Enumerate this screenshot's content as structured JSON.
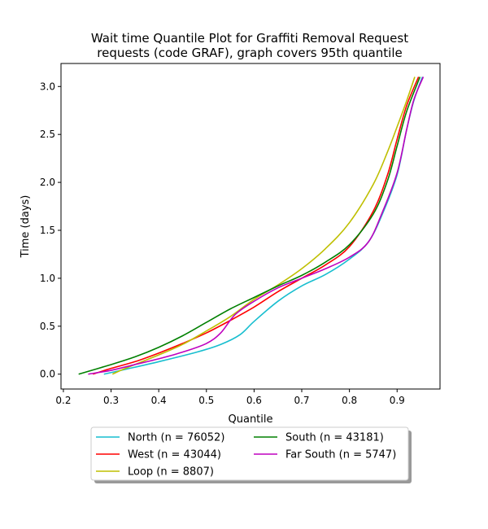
{
  "chart_data": {
    "type": "line",
    "title_lines": [
      "Wait time Quantile Plot for Graffiti Removal Request",
      "requests (code GRAF), graph covers 95th quantile"
    ],
    "xlabel": "Quantile",
    "ylabel": "Time (days)",
    "xlim": [
      0.195,
      0.99
    ],
    "ylim": [
      -0.155,
      3.24
    ],
    "xticks": [
      0.2,
      0.3,
      0.4,
      0.5,
      0.6,
      0.7,
      0.8,
      0.9
    ],
    "xtick_labels": [
      "0.2",
      "0.3",
      "0.4",
      "0.5",
      "0.6",
      "0.7",
      "0.8",
      "0.9"
    ],
    "yticks": [
      0.0,
      0.5,
      1.0,
      1.5,
      2.0,
      2.5,
      3.0
    ],
    "ytick_labels": [
      "0.0",
      "0.5",
      "1.0",
      "1.5",
      "2.0",
      "2.5",
      "3.0"
    ],
    "legend_location": "below",
    "series": [
      {
        "name": "North",
        "legend": "North (n = 76052)",
        "color": "#17becf",
        "points": [
          [
            0.285,
            0.0
          ],
          [
            0.33,
            0.05
          ],
          [
            0.4,
            0.13
          ],
          [
            0.48,
            0.23
          ],
          [
            0.53,
            0.31
          ],
          [
            0.57,
            0.41
          ],
          [
            0.6,
            0.55
          ],
          [
            0.65,
            0.76
          ],
          [
            0.7,
            0.92
          ],
          [
            0.75,
            1.04
          ],
          [
            0.8,
            1.2
          ],
          [
            0.84,
            1.38
          ],
          [
            0.87,
            1.68
          ],
          [
            0.9,
            2.08
          ],
          [
            0.92,
            2.55
          ],
          [
            0.935,
            2.85
          ],
          [
            0.953,
            3.1
          ]
        ]
      },
      {
        "name": "West",
        "legend": "West (n = 43044)",
        "color": "#ff0000",
        "points": [
          [
            0.262,
            0.0
          ],
          [
            0.3,
            0.06
          ],
          [
            0.35,
            0.13
          ],
          [
            0.4,
            0.22
          ],
          [
            0.45,
            0.32
          ],
          [
            0.5,
            0.43
          ],
          [
            0.55,
            0.56
          ],
          [
            0.6,
            0.7
          ],
          [
            0.65,
            0.86
          ],
          [
            0.7,
            1.0
          ],
          [
            0.75,
            1.14
          ],
          [
            0.8,
            1.33
          ],
          [
            0.85,
            1.7
          ],
          [
            0.88,
            2.08
          ],
          [
            0.9,
            2.45
          ],
          [
            0.92,
            2.8
          ],
          [
            0.945,
            3.1
          ]
        ]
      },
      {
        "name": "Loop",
        "legend": "Loop (n = 8807)",
        "color": "#bfbf00",
        "points": [
          [
            0.303,
            0.0
          ],
          [
            0.33,
            0.06
          ],
          [
            0.4,
            0.2
          ],
          [
            0.45,
            0.31
          ],
          [
            0.5,
            0.45
          ],
          [
            0.55,
            0.6
          ],
          [
            0.6,
            0.78
          ],
          [
            0.65,
            0.93
          ],
          [
            0.7,
            1.1
          ],
          [
            0.75,
            1.31
          ],
          [
            0.8,
            1.58
          ],
          [
            0.85,
            1.98
          ],
          [
            0.88,
            2.32
          ],
          [
            0.9,
            2.58
          ],
          [
            0.92,
            2.85
          ],
          [
            0.937,
            3.1
          ]
        ]
      },
      {
        "name": "South",
        "legend": "South (n = 43181)",
        "color": "#008000",
        "points": [
          [
            0.232,
            0.0
          ],
          [
            0.3,
            0.1
          ],
          [
            0.35,
            0.18
          ],
          [
            0.4,
            0.28
          ],
          [
            0.45,
            0.4
          ],
          [
            0.5,
            0.54
          ],
          [
            0.55,
            0.68
          ],
          [
            0.6,
            0.8
          ],
          [
            0.65,
            0.92
          ],
          [
            0.7,
            1.03
          ],
          [
            0.75,
            1.17
          ],
          [
            0.8,
            1.35
          ],
          [
            0.85,
            1.67
          ],
          [
            0.88,
            2.02
          ],
          [
            0.9,
            2.38
          ],
          [
            0.92,
            2.74
          ],
          [
            0.948,
            3.1
          ]
        ]
      },
      {
        "name": "Far South",
        "legend": "Far South (n = 5747)",
        "color": "#bf00bf",
        "points": [
          [
            0.252,
            0.0
          ],
          [
            0.3,
            0.04
          ],
          [
            0.35,
            0.1
          ],
          [
            0.4,
            0.16
          ],
          [
            0.45,
            0.23
          ],
          [
            0.5,
            0.32
          ],
          [
            0.53,
            0.43
          ],
          [
            0.56,
            0.62
          ],
          [
            0.6,
            0.76
          ],
          [
            0.65,
            0.9
          ],
          [
            0.7,
            1.0
          ],
          [
            0.75,
            1.1
          ],
          [
            0.8,
            1.22
          ],
          [
            0.84,
            1.38
          ],
          [
            0.87,
            1.7
          ],
          [
            0.9,
            2.1
          ],
          [
            0.92,
            2.55
          ],
          [
            0.935,
            2.86
          ],
          [
            0.955,
            3.1
          ]
        ]
      }
    ]
  }
}
